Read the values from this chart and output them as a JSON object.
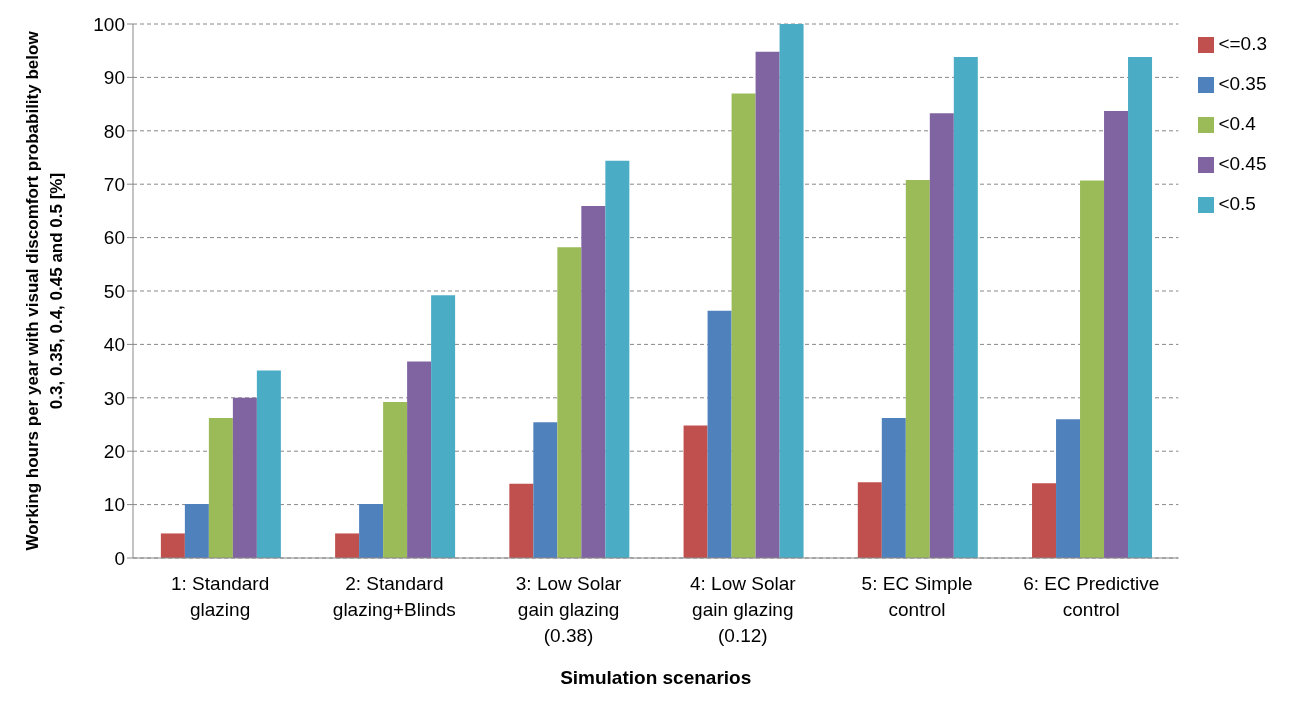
{
  "chart_data": {
    "type": "bar",
    "xlabel": "Simulation scenarios",
    "ylabel": "Working hours per year with visual discomfort probability below 0.3, 0.35, 0.4, 0.45 and 0.5 [%]",
    "categories": [
      "1: Standard glazing",
      "2: Standard glazing+Blinds",
      "3: Low Solar gain glazing (0.38)",
      "4: Low Solar gain glazing (0.12)",
      "5: EC Simple control",
      "6: EC Predictive control"
    ],
    "series": [
      {
        "name": "<=0.3",
        "color": "#c0504d",
        "values": [
          4.6,
          4.6,
          13.9,
          24.8,
          14.2,
          14.0
        ]
      },
      {
        "name": "<0.35",
        "color": "#4f81bd",
        "values": [
          10.1,
          10.1,
          25.4,
          46.3,
          26.2,
          26.0
        ]
      },
      {
        "name": "<0.4",
        "color": "#9bbb59",
        "values": [
          26.2,
          29.2,
          58.2,
          87.0,
          70.8,
          70.7
        ]
      },
      {
        "name": "<0.45",
        "color": "#8064a2",
        "values": [
          30.0,
          36.8,
          65.9,
          94.8,
          83.3,
          83.7
        ]
      },
      {
        "name": "<0.5",
        "color": "#4bacc6",
        "values": [
          35.1,
          49.2,
          74.4,
          100,
          93.8,
          93.8
        ]
      }
    ],
    "ylim": [
      0,
      100
    ],
    "yticks": [
      0,
      10,
      20,
      30,
      40,
      50,
      60,
      70,
      80,
      90,
      100
    ],
    "grid": "y",
    "legend": "top right"
  }
}
